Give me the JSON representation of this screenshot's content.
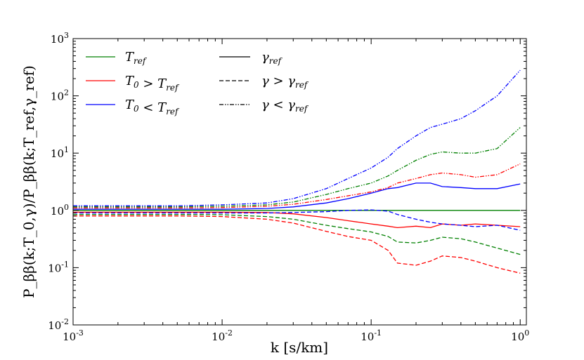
{
  "chart_data": {
    "type": "line",
    "xscale": "log",
    "yscale": "log",
    "xlim": [
      0.001,
      1.1
    ],
    "ylim": [
      0.01,
      1000
    ],
    "xlabel": "k [s/km]",
    "ylabel": "P_ββ(k;T_0,γ)/P_ββ(k;T_ref,γ_ref)",
    "xticks": [
      0.001,
      0.01,
      0.1,
      1
    ],
    "xtick_labels": [
      "10^-3",
      "10^-2",
      "10^-1",
      "10^0"
    ],
    "yticks": [
      0.01,
      0.1,
      1,
      10,
      100,
      1000
    ],
    "ytick_labels": [
      "10^-2",
      "10^-1",
      "10^0",
      "10^1",
      "10^2",
      "10^3"
    ],
    "colors": {
      "T_ref": "#008000",
      "T0_gt": "#ff0000",
      "T0_lt": "#0000ff",
      "black": "#000000"
    },
    "legend_temperature": [
      {
        "label": "T_ref",
        "color": "#008000"
      },
      {
        "label": "T_0 > T_ref",
        "color": "#ff0000"
      },
      {
        "label": "T_0 < T_ref",
        "color": "#0000ff"
      }
    ],
    "legend_gamma": [
      {
        "label": "γ_ref",
        "dash": "solid"
      },
      {
        "label": "γ > γ_ref",
        "dash": "dashed"
      },
      {
        "label": "γ < γ_ref",
        "dash": "dashdot"
      }
    ],
    "series": [
      {
        "name": "T_ref, γ_ref",
        "color": "#008000",
        "dash": "solid",
        "x": [
          0.001,
          1
        ],
        "y": [
          1.0,
          1.0
        ]
      },
      {
        "name": "T_0 > T_ref, γ_ref",
        "color": "#ff0000",
        "dash": "solid",
        "x": [
          0.001,
          0.005,
          0.01,
          0.02,
          0.03,
          0.05,
          0.07,
          0.1,
          0.13,
          0.15,
          0.2,
          0.25,
          0.3,
          0.4,
          0.5,
          0.7,
          1.0
        ],
        "y": [
          0.93,
          0.93,
          0.93,
          0.92,
          0.87,
          0.75,
          0.66,
          0.58,
          0.53,
          0.5,
          0.53,
          0.5,
          0.58,
          0.55,
          0.58,
          0.55,
          0.52
        ]
      },
      {
        "name": "T_0 < T_ref, γ_ref",
        "color": "#0000ff",
        "dash": "solid",
        "x": [
          0.001,
          0.005,
          0.01,
          0.02,
          0.03,
          0.05,
          0.07,
          0.1,
          0.13,
          0.15,
          0.2,
          0.25,
          0.3,
          0.4,
          0.5,
          0.7,
          1.0
        ],
        "y": [
          1.05,
          1.05,
          1.05,
          1.08,
          1.15,
          1.35,
          1.6,
          2.0,
          2.4,
          2.5,
          3.0,
          3.0,
          2.6,
          2.5,
          2.4,
          2.4,
          2.9
        ]
      },
      {
        "name": "T_ref, γ > γ_ref",
        "color": "#008000",
        "dash": "dashed",
        "x": [
          0.001,
          0.005,
          0.01,
          0.02,
          0.03,
          0.05,
          0.07,
          0.1,
          0.13,
          0.15,
          0.2,
          0.25,
          0.3,
          0.4,
          0.5,
          0.7,
          1.0
        ],
        "y": [
          0.85,
          0.85,
          0.84,
          0.78,
          0.7,
          0.55,
          0.48,
          0.42,
          0.35,
          0.28,
          0.27,
          0.3,
          0.34,
          0.32,
          0.28,
          0.22,
          0.17
        ]
      },
      {
        "name": "T_0 > T_ref, γ > γ_ref",
        "color": "#ff0000",
        "dash": "dashed",
        "x": [
          0.001,
          0.005,
          0.01,
          0.02,
          0.03,
          0.05,
          0.07,
          0.1,
          0.13,
          0.15,
          0.2,
          0.25,
          0.3,
          0.4,
          0.5,
          0.7,
          1.0
        ],
        "y": [
          0.8,
          0.8,
          0.78,
          0.7,
          0.6,
          0.43,
          0.35,
          0.3,
          0.2,
          0.12,
          0.11,
          0.13,
          0.16,
          0.15,
          0.13,
          0.1,
          0.08
        ]
      },
      {
        "name": "T_0 < T_ref, γ > γ_ref",
        "color": "#0000ff",
        "dash": "dashed",
        "x": [
          0.001,
          0.005,
          0.01,
          0.02,
          0.03,
          0.05,
          0.07,
          0.1,
          0.13,
          0.15,
          0.2,
          0.25,
          0.3,
          0.4,
          0.5,
          0.7,
          1.0
        ],
        "y": [
          0.9,
          0.9,
          0.9,
          0.9,
          0.92,
          0.95,
          1.0,
          1.02,
          0.97,
          0.85,
          0.7,
          0.62,
          0.58,
          0.55,
          0.52,
          0.55,
          0.45
        ]
      },
      {
        "name": "T_ref, γ < γ_ref",
        "color": "#008000",
        "dash": "dashdot",
        "x": [
          0.001,
          0.005,
          0.01,
          0.02,
          0.03,
          0.05,
          0.07,
          0.1,
          0.13,
          0.15,
          0.2,
          0.25,
          0.3,
          0.4,
          0.5,
          0.7,
          1.0
        ],
        "y": [
          1.15,
          1.15,
          1.18,
          1.25,
          1.4,
          1.9,
          2.4,
          3.0,
          4.0,
          5.0,
          7.5,
          9.5,
          10.5,
          10.0,
          10.0,
          12.0,
          28.0
        ]
      },
      {
        "name": "T_0 > T_ref, γ < γ_ref",
        "color": "#ff0000",
        "dash": "dashdot",
        "x": [
          0.001,
          0.005,
          0.01,
          0.02,
          0.03,
          0.05,
          0.07,
          0.1,
          0.13,
          0.15,
          0.2,
          0.25,
          0.3,
          0.4,
          0.5,
          0.7,
          1.0
        ],
        "y": [
          1.1,
          1.1,
          1.12,
          1.18,
          1.28,
          1.55,
          1.8,
          2.1,
          2.5,
          3.0,
          3.6,
          4.2,
          4.5,
          4.2,
          3.8,
          4.2,
          6.5
        ]
      },
      {
        "name": "T_0 < T_ref, γ < γ_ref",
        "color": "#0000ff",
        "dash": "dashdot",
        "x": [
          0.001,
          0.005,
          0.01,
          0.02,
          0.03,
          0.05,
          0.07,
          0.1,
          0.13,
          0.15,
          0.2,
          0.25,
          0.3,
          0.4,
          0.5,
          0.7,
          1.0
        ],
        "y": [
          1.2,
          1.2,
          1.25,
          1.35,
          1.6,
          2.4,
          3.6,
          5.5,
          8.5,
          12.0,
          20.0,
          28.0,
          32.0,
          40.0,
          55.0,
          100.0,
          280.0
        ]
      }
    ]
  }
}
